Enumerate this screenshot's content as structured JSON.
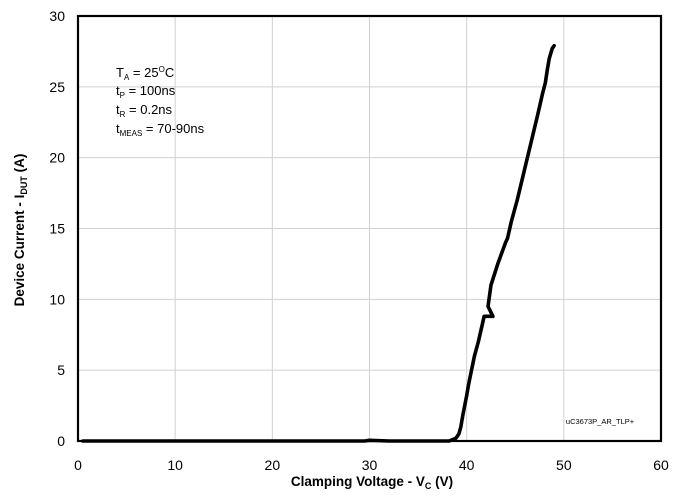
{
  "chart_data": {
    "type": "line",
    "title": "",
    "xlabel": {
      "main": "Clamping Voltage - V",
      "sub": "C",
      "unit": " (V)"
    },
    "ylabel": {
      "main": "Device Current - I",
      "sub": "DUT",
      "unit": " (A)"
    },
    "xlim": [
      0,
      60
    ],
    "ylim": [
      0,
      30
    ],
    "xticks": [
      0,
      10,
      20,
      30,
      40,
      50,
      60
    ],
    "yticks": [
      0,
      5,
      10,
      15,
      20,
      25,
      30
    ],
    "grid": true,
    "line_color": "#000000",
    "annotations": {
      "ta": {
        "main": "T",
        "sub": "A",
        "rest": " = 25",
        "sup": "O",
        "after": "C"
      },
      "tp": {
        "main": "t",
        "sub": "P",
        "rest": " = 100ns"
      },
      "tr": {
        "main": "t",
        "sub": "R",
        "rest": " = 0.2ns"
      },
      "tmeas": {
        "main": "t",
        "sub": "MEAS",
        "rest": " = 70-90ns"
      }
    },
    "watermark": "uC3673P_AR_TLP+",
    "series": [
      {
        "x": [
          0.5,
          5,
          10,
          15,
          20,
          25,
          29.5,
          30,
          32,
          35,
          38.2,
          38.9,
          39.2,
          39.4,
          39.6,
          39.8,
          40.0,
          40.2,
          40.5,
          40.8,
          41.2,
          41.6,
          41.8,
          42.2,
          42.7,
          42.2,
          42.5,
          43.2,
          44.0,
          44.2,
          44.6,
          45.2,
          45.9,
          46.6,
          47.3,
          47.8,
          48.1,
          48.3,
          48.5,
          48.8,
          49.0
        ],
        "y": [
          0,
          0,
          0,
          0,
          0,
          0,
          0,
          0.05,
          0,
          0,
          0,
          0.2,
          0.5,
          1.0,
          1.8,
          2.5,
          3.2,
          4.0,
          5.0,
          6.0,
          7.0,
          8.2,
          8.8,
          8.8,
          8.8,
          9.5,
          11.0,
          12.5,
          14.0,
          14.3,
          15.5,
          17.0,
          19.0,
          21.0,
          23.0,
          24.5,
          25.3,
          26.2,
          27.0,
          27.7,
          27.9
        ]
      }
    ]
  }
}
